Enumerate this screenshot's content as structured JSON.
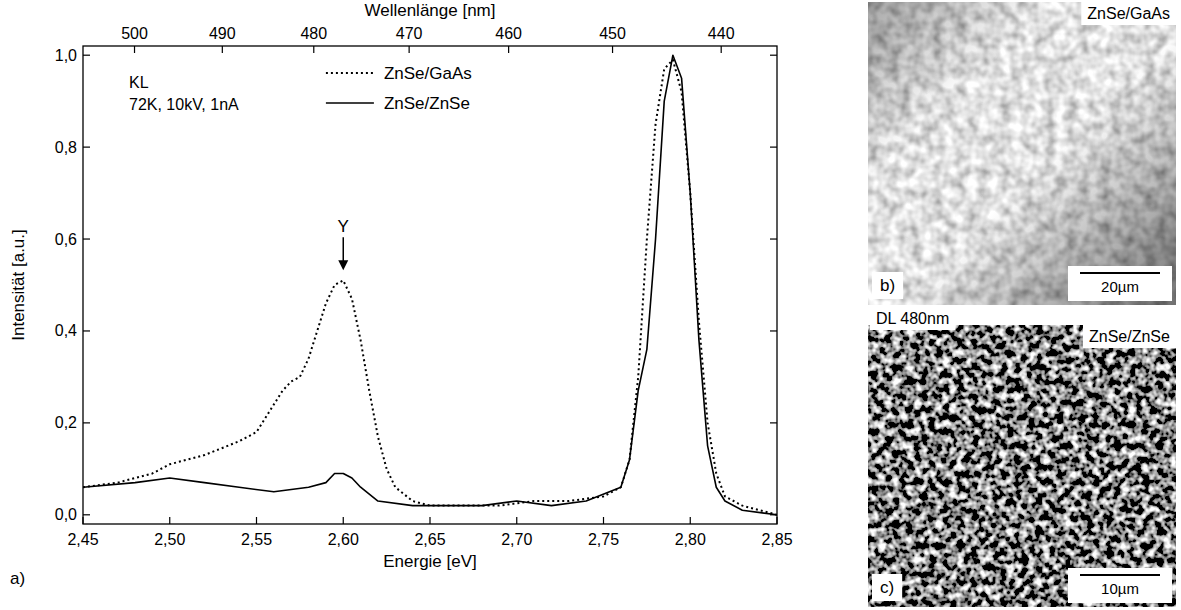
{
  "chart_data": {
    "type": "line",
    "panel": "a)",
    "xlabel": "Energie [eV]",
    "ylabel": "Intensität [a.u.]",
    "x2label": "Wellenlänge [nm]",
    "conditions": [
      "KL",
      "72K, 10kV, 1nA"
    ],
    "annotations": [
      {
        "text": "Y",
        "x": 2.6,
        "y": 0.53
      }
    ],
    "xlim": [
      2.45,
      2.85
    ],
    "xticks": [
      {
        "value": 2.45,
        "label": "2,45"
      },
      {
        "value": 2.5,
        "label": "2,50"
      },
      {
        "value": 2.55,
        "label": "2,55"
      },
      {
        "value": 2.6,
        "label": "2,60"
      },
      {
        "value": 2.65,
        "label": "2,65"
      },
      {
        "value": 2.7,
        "label": "2,70"
      },
      {
        "value": 2.75,
        "label": "2,75"
      },
      {
        "value": 2.8,
        "label": "2,80"
      },
      {
        "value": 2.85,
        "label": "2,85"
      }
    ],
    "x2lim": [
      506.06,
      435.03
    ],
    "x2ticks": [
      500,
      490,
      480,
      470,
      460,
      450,
      440
    ],
    "ylim": [
      -0.02,
      1.02
    ],
    "yticks": [
      {
        "value": 0,
        "label": "0,0"
      },
      {
        "value": 0.2,
        "label": "0,2"
      },
      {
        "value": 0.4,
        "label": "0,4"
      },
      {
        "value": 0.6,
        "label": "0,6"
      },
      {
        "value": 0.8,
        "label": "0,8"
      },
      {
        "value": 1,
        "label": "1,0"
      }
    ],
    "legend": "top",
    "series": [
      {
        "name": "ZnSe/GaAs",
        "color": "#000000",
        "line_style": "dotted",
        "x": [
          2.45,
          2.47,
          2.49,
          2.5,
          2.52,
          2.54,
          2.55,
          2.56,
          2.565,
          2.57,
          2.575,
          2.58,
          2.585,
          2.59,
          2.595,
          2.6,
          2.605,
          2.61,
          2.615,
          2.62,
          2.625,
          2.63,
          2.64,
          2.65,
          2.67,
          2.69,
          2.71,
          2.73,
          2.75,
          2.76,
          2.765,
          2.77,
          2.775,
          2.78,
          2.785,
          2.79,
          2.795,
          2.8,
          2.805,
          2.81,
          2.815,
          2.82,
          2.83,
          2.85
        ],
        "values": [
          0.06,
          0.07,
          0.09,
          0.11,
          0.13,
          0.16,
          0.18,
          0.24,
          0.27,
          0.29,
          0.3,
          0.34,
          0.4,
          0.46,
          0.5,
          0.51,
          0.47,
          0.38,
          0.27,
          0.17,
          0.1,
          0.06,
          0.03,
          0.02,
          0.02,
          0.02,
          0.03,
          0.03,
          0.04,
          0.06,
          0.12,
          0.3,
          0.6,
          0.85,
          0.97,
          0.99,
          0.92,
          0.7,
          0.42,
          0.2,
          0.09,
          0.04,
          0.02,
          0.0
        ]
      },
      {
        "name": "ZnSe/ZnSe",
        "color": "#000000",
        "line_style": "solid",
        "x": [
          2.45,
          2.48,
          2.5,
          2.52,
          2.54,
          2.56,
          2.58,
          2.59,
          2.595,
          2.6,
          2.605,
          2.61,
          2.62,
          2.64,
          2.66,
          2.68,
          2.7,
          2.72,
          2.74,
          2.76,
          2.765,
          2.77,
          2.775,
          2.78,
          2.785,
          2.79,
          2.795,
          2.8,
          2.805,
          2.81,
          2.815,
          2.82,
          2.83,
          2.85
        ],
        "values": [
          0.06,
          0.07,
          0.08,
          0.07,
          0.06,
          0.05,
          0.06,
          0.07,
          0.09,
          0.09,
          0.08,
          0.06,
          0.03,
          0.02,
          0.02,
          0.02,
          0.03,
          0.02,
          0.03,
          0.06,
          0.12,
          0.27,
          0.36,
          0.6,
          0.9,
          1.0,
          0.95,
          0.7,
          0.38,
          0.15,
          0.06,
          0.03,
          0.01,
          0.0
        ]
      }
    ]
  },
  "images": [
    {
      "label": "b)",
      "title": "ZnSe/GaAs",
      "scale_bar": "20µm"
    },
    {
      "label": "c)",
      "title": "ZnSe/ZnSe",
      "scale_bar": "10µm",
      "caption": "DL 480nm"
    }
  ]
}
